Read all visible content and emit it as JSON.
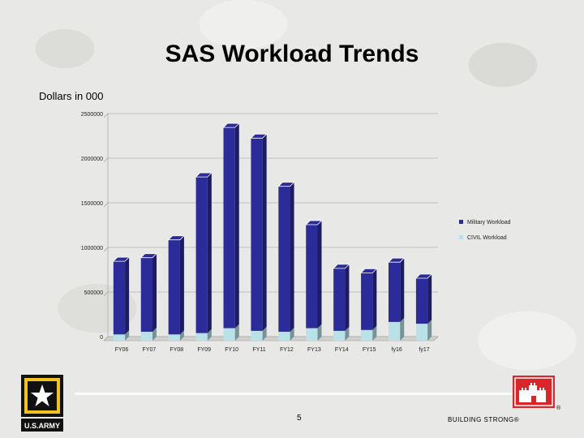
{
  "slide": {
    "title": "SAS Workload Trends",
    "units_label": "Dollars in 000",
    "page_number": "5",
    "tagline": "BUILDING STRONG®",
    "army_logo_text": "U.S.ARMY"
  },
  "colors": {
    "military": "#2b2b99",
    "civil": "#b9e2e8",
    "background": "#e8e8e6"
  },
  "chart_data": {
    "type": "bar",
    "stacked": true,
    "categories": [
      "FY06",
      "FY07",
      "FY08",
      "FY09",
      "FY10",
      "FY11",
      "FY12",
      "FY13",
      "FY14",
      "FY15",
      "fy16",
      "fy17"
    ],
    "series": [
      {
        "name": "CIVIL Workload",
        "values": [
          70,
          100,
          70,
          85,
          140,
          110,
          100,
          140,
          110,
          120,
          210,
          190
        ]
      },
      {
        "name": "Military Workload",
        "values": [
          820,
          830,
          1060,
          1750,
          2250,
          2160,
          1630,
          1160,
          700,
          640,
          670,
          510
        ]
      }
    ],
    "y_ticks": [
      "0",
      "500000",
      "1000000",
      "1500000",
      "2000000",
      "2500000"
    ],
    "ylim": [
      0,
      2500
    ],
    "grid": true,
    "legend": "right"
  }
}
